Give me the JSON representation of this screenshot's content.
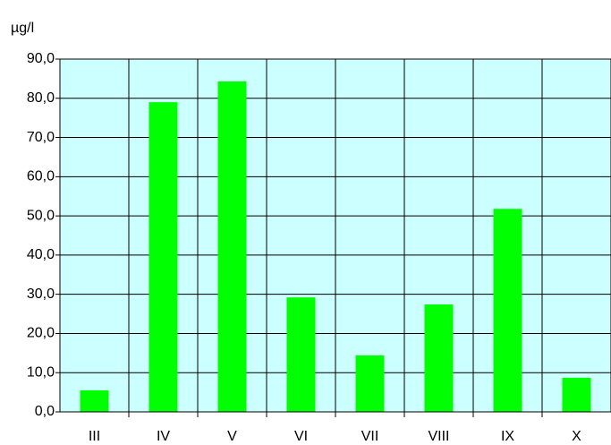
{
  "chart_data": {
    "type": "bar",
    "y_label": "µg/l",
    "categories": [
      "III",
      "IV",
      "V",
      "VI",
      "VII",
      "VIII",
      "IX",
      "X"
    ],
    "values": [
      5.5,
      79,
      84.3,
      29.2,
      14.4,
      27.4,
      51.8,
      8.7
    ],
    "color": "#00ff00",
    "background": "#ccffff",
    "ylim": [
      0,
      90
    ],
    "yticks": [
      {
        "value": 0,
        "label": "0,0"
      },
      {
        "value": 10,
        "label": "10,0"
      },
      {
        "value": 20,
        "label": "20,0"
      },
      {
        "value": 30,
        "label": "30,0"
      },
      {
        "value": 40,
        "label": "40,0"
      },
      {
        "value": 50,
        "label": "50,0"
      },
      {
        "value": 60,
        "label": "60,0"
      },
      {
        "value": 70,
        "label": "70,0"
      },
      {
        "value": 80,
        "label": "80,0"
      },
      {
        "value": 90,
        "label": "90,0"
      }
    ],
    "grid": true
  }
}
